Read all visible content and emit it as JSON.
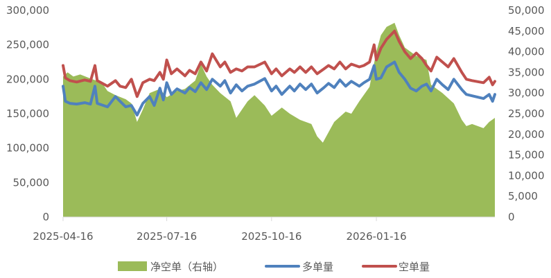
{
  "chart_data": {
    "type": "area",
    "y_left": {
      "ticks": [
        "0",
        "50,000",
        "100,000",
        "150,000",
        "200,000",
        "250,000",
        "300,000"
      ],
      "range": [
        0,
        300000
      ]
    },
    "y_right": {
      "ticks": [
        "0",
        "5,000",
        "10,000",
        "15,000",
        "20,000",
        "25,000",
        "30,000",
        "35,000",
        "40,000",
        "45,000",
        "50,000"
      ],
      "range": [
        0,
        50000
      ]
    },
    "x_ticks": [
      "2025-04-16",
      "2025-07-16",
      "2025-10-16",
      "2026-01-16"
    ],
    "x_range": [
      "2025-04-16",
      "2026-04-30"
    ],
    "grid": false,
    "legend_position": "bottom",
    "series": [
      {
        "name": "净空单（右轴）",
        "type": "area",
        "axis": "right",
        "color": "#9bbb59",
        "points": [
          [
            "2025-04-16",
            34000
          ],
          [
            "2025-04-20",
            35000
          ],
          [
            "2025-04-25",
            34000
          ],
          [
            "2025-05-01",
            34500
          ],
          [
            "2025-05-10",
            33500
          ],
          [
            "2025-05-20",
            32500
          ],
          [
            "2025-05-25",
            30500
          ],
          [
            "2025-06-01",
            29500
          ],
          [
            "2025-06-10",
            28500
          ],
          [
            "2025-06-15",
            27500
          ],
          [
            "2025-06-20",
            23000
          ],
          [
            "2025-06-25",
            26000
          ],
          [
            "2025-07-01",
            30000
          ],
          [
            "2025-07-10",
            31000
          ],
          [
            "2025-07-16",
            29000
          ],
          [
            "2025-07-25",
            30500
          ],
          [
            "2025-08-01",
            31000
          ],
          [
            "2025-08-10",
            33000
          ],
          [
            "2025-08-15",
            37000
          ],
          [
            "2025-08-20",
            34000
          ],
          [
            "2025-08-25",
            32000
          ],
          [
            "2025-09-01",
            30000
          ],
          [
            "2025-09-10",
            28000
          ],
          [
            "2025-09-15",
            24000
          ],
          [
            "2025-09-20",
            26000
          ],
          [
            "2025-09-25",
            28000
          ],
          [
            "2025-10-01",
            29500
          ],
          [
            "2025-10-10",
            27000
          ],
          [
            "2025-10-16",
            24500
          ],
          [
            "2025-10-25",
            26500
          ],
          [
            "2025-11-01",
            25000
          ],
          [
            "2025-11-10",
            23500
          ],
          [
            "2025-11-20",
            22500
          ],
          [
            "2025-11-25",
            19500
          ],
          [
            "2025-11-30",
            18000
          ],
          [
            "2025-12-05",
            20500
          ],
          [
            "2025-12-10",
            23000
          ],
          [
            "2025-12-20",
            25500
          ],
          [
            "2025-12-25",
            25000
          ],
          [
            "2026-01-01",
            28000
          ],
          [
            "2026-01-10",
            31500
          ],
          [
            "2026-01-16",
            40000
          ],
          [
            "2026-01-20",
            44000
          ],
          [
            "2026-01-25",
            46000
          ],
          [
            "2026-02-01",
            47000
          ],
          [
            "2026-02-05",
            44000
          ],
          [
            "2026-02-10",
            41000
          ],
          [
            "2026-02-20",
            39000
          ],
          [
            "2026-03-01",
            38000
          ],
          [
            "2026-03-05",
            32000
          ],
          [
            "2026-03-15",
            30000
          ],
          [
            "2026-03-25",
            27500
          ],
          [
            "2026-04-01",
            23500
          ],
          [
            "2026-04-05",
            22000
          ],
          [
            "2026-04-10",
            22500
          ],
          [
            "2026-04-20",
            21500
          ],
          [
            "2026-04-25",
            23000
          ],
          [
            "2026-04-30",
            24000
          ]
        ]
      },
      {
        "name": "多单量",
        "type": "line",
        "axis": "left",
        "color": "#4f81bd",
        "points": [
          [
            "2025-04-16",
            190000
          ],
          [
            "2025-04-18",
            168000
          ],
          [
            "2025-04-22",
            165000
          ],
          [
            "2025-04-28",
            164000
          ],
          [
            "2025-05-05",
            166000
          ],
          [
            "2025-05-10",
            164000
          ],
          [
            "2025-05-14",
            190000
          ],
          [
            "2025-05-16",
            165000
          ],
          [
            "2025-05-25",
            160000
          ],
          [
            "2025-06-01",
            175000
          ],
          [
            "2025-06-05",
            168000
          ],
          [
            "2025-06-10",
            160000
          ],
          [
            "2025-06-15",
            162000
          ],
          [
            "2025-06-20",
            148000
          ],
          [
            "2025-06-25",
            165000
          ],
          [
            "2025-07-01",
            175000
          ],
          [
            "2025-07-05",
            162000
          ],
          [
            "2025-07-10",
            187000
          ],
          [
            "2025-07-13",
            170000
          ],
          [
            "2025-07-16",
            195000
          ],
          [
            "2025-07-20",
            178000
          ],
          [
            "2025-07-25",
            186000
          ],
          [
            "2025-08-01",
            180000
          ],
          [
            "2025-08-05",
            188000
          ],
          [
            "2025-08-10",
            182000
          ],
          [
            "2025-08-15",
            195000
          ],
          [
            "2025-08-20",
            185000
          ],
          [
            "2025-08-25",
            200000
          ],
          [
            "2025-09-01",
            190000
          ],
          [
            "2025-09-05",
            198000
          ],
          [
            "2025-09-10",
            180000
          ],
          [
            "2025-09-15",
            192000
          ],
          [
            "2025-09-20",
            183000
          ],
          [
            "2025-09-25",
            190000
          ],
          [
            "2025-10-01",
            193000
          ],
          [
            "2025-10-10",
            201000
          ],
          [
            "2025-10-16",
            183000
          ],
          [
            "2025-10-20",
            190000
          ],
          [
            "2025-10-25",
            178000
          ],
          [
            "2025-11-01",
            190000
          ],
          [
            "2025-11-05",
            183000
          ],
          [
            "2025-11-10",
            193000
          ],
          [
            "2025-11-15",
            185000
          ],
          [
            "2025-11-20",
            193000
          ],
          [
            "2025-11-25",
            180000
          ],
          [
            "2025-12-01",
            188000
          ],
          [
            "2025-12-05",
            194000
          ],
          [
            "2025-12-10",
            188000
          ],
          [
            "2025-12-15",
            199000
          ],
          [
            "2025-12-20",
            190000
          ],
          [
            "2025-12-25",
            197000
          ],
          [
            "2026-01-01",
            190000
          ],
          [
            "2026-01-05",
            195000
          ],
          [
            "2026-01-10",
            200000
          ],
          [
            "2026-01-14",
            220000
          ],
          [
            "2026-01-16",
            200000
          ],
          [
            "2026-01-20",
            202000
          ],
          [
            "2026-01-25",
            218000
          ],
          [
            "2026-02-01",
            225000
          ],
          [
            "2026-02-05",
            210000
          ],
          [
            "2026-02-10",
            200000
          ],
          [
            "2026-02-15",
            187000
          ],
          [
            "2026-02-20",
            183000
          ],
          [
            "2026-02-25",
            190000
          ],
          [
            "2026-03-01",
            193000
          ],
          [
            "2026-03-05",
            183000
          ],
          [
            "2026-03-10",
            200000
          ],
          [
            "2026-03-15",
            192000
          ],
          [
            "2026-03-20",
            185000
          ],
          [
            "2026-03-25",
            200000
          ],
          [
            "2026-04-01",
            185000
          ],
          [
            "2026-04-05",
            178000
          ],
          [
            "2026-04-10",
            176000
          ],
          [
            "2026-04-20",
            172000
          ],
          [
            "2026-04-25",
            178000
          ],
          [
            "2026-04-28",
            168000
          ],
          [
            "2026-04-30",
            178000
          ]
        ]
      },
      {
        "name": "空单量",
        "type": "line",
        "axis": "left",
        "color": "#c0504d",
        "points": [
          [
            "2025-04-16",
            220000
          ],
          [
            "2025-04-18",
            202000
          ],
          [
            "2025-04-22",
            198000
          ],
          [
            "2025-04-28",
            196000
          ],
          [
            "2025-05-05",
            199000
          ],
          [
            "2025-05-10",
            197000
          ],
          [
            "2025-05-14",
            220000
          ],
          [
            "2025-05-16",
            198000
          ],
          [
            "2025-05-25",
            190000
          ],
          [
            "2025-06-01",
            198000
          ],
          [
            "2025-06-05",
            190000
          ],
          [
            "2025-06-10",
            188000
          ],
          [
            "2025-06-15",
            200000
          ],
          [
            "2025-06-20",
            175000
          ],
          [
            "2025-06-25",
            195000
          ],
          [
            "2025-07-01",
            200000
          ],
          [
            "2025-07-05",
            198000
          ],
          [
            "2025-07-10",
            210000
          ],
          [
            "2025-07-13",
            200000
          ],
          [
            "2025-07-16",
            228000
          ],
          [
            "2025-07-20",
            208000
          ],
          [
            "2025-07-25",
            215000
          ],
          [
            "2025-08-01",
            205000
          ],
          [
            "2025-08-05",
            213000
          ],
          [
            "2025-08-10",
            208000
          ],
          [
            "2025-08-15",
            225000
          ],
          [
            "2025-08-20",
            212000
          ],
          [
            "2025-08-25",
            237000
          ],
          [
            "2025-09-01",
            218000
          ],
          [
            "2025-09-05",
            225000
          ],
          [
            "2025-09-10",
            210000
          ],
          [
            "2025-09-15",
            215000
          ],
          [
            "2025-09-20",
            212000
          ],
          [
            "2025-09-25",
            218000
          ],
          [
            "2025-10-01",
            218000
          ],
          [
            "2025-10-10",
            225000
          ],
          [
            "2025-10-16",
            208000
          ],
          [
            "2025-10-20",
            215000
          ],
          [
            "2025-10-25",
            205000
          ],
          [
            "2025-11-01",
            215000
          ],
          [
            "2025-11-05",
            210000
          ],
          [
            "2025-11-10",
            218000
          ],
          [
            "2025-11-15",
            210000
          ],
          [
            "2025-11-20",
            218000
          ],
          [
            "2025-11-25",
            208000
          ],
          [
            "2025-12-01",
            215000
          ],
          [
            "2025-12-05",
            220000
          ],
          [
            "2025-12-10",
            215000
          ],
          [
            "2025-12-15",
            225000
          ],
          [
            "2025-12-20",
            215000
          ],
          [
            "2025-12-25",
            222000
          ],
          [
            "2026-01-01",
            218000
          ],
          [
            "2026-01-05",
            220000
          ],
          [
            "2026-01-10",
            225000
          ],
          [
            "2026-01-14",
            250000
          ],
          [
            "2026-01-16",
            228000
          ],
          [
            "2026-01-20",
            245000
          ],
          [
            "2026-01-25",
            258000
          ],
          [
            "2026-02-01",
            270000
          ],
          [
            "2026-02-05",
            255000
          ],
          [
            "2026-02-10",
            240000
          ],
          [
            "2026-02-15",
            230000
          ],
          [
            "2026-02-20",
            238000
          ],
          [
            "2026-02-25",
            230000
          ],
          [
            "2026-03-01",
            220000
          ],
          [
            "2026-03-05",
            212000
          ],
          [
            "2026-03-10",
            232000
          ],
          [
            "2026-03-15",
            225000
          ],
          [
            "2026-03-20",
            218000
          ],
          [
            "2026-03-25",
            230000
          ],
          [
            "2026-04-01",
            210000
          ],
          [
            "2026-04-05",
            200000
          ],
          [
            "2026-04-10",
            198000
          ],
          [
            "2026-04-20",
            195000
          ],
          [
            "2026-04-25",
            203000
          ],
          [
            "2026-04-28",
            192000
          ],
          [
            "2026-04-30",
            197000
          ]
        ]
      }
    ]
  }
}
